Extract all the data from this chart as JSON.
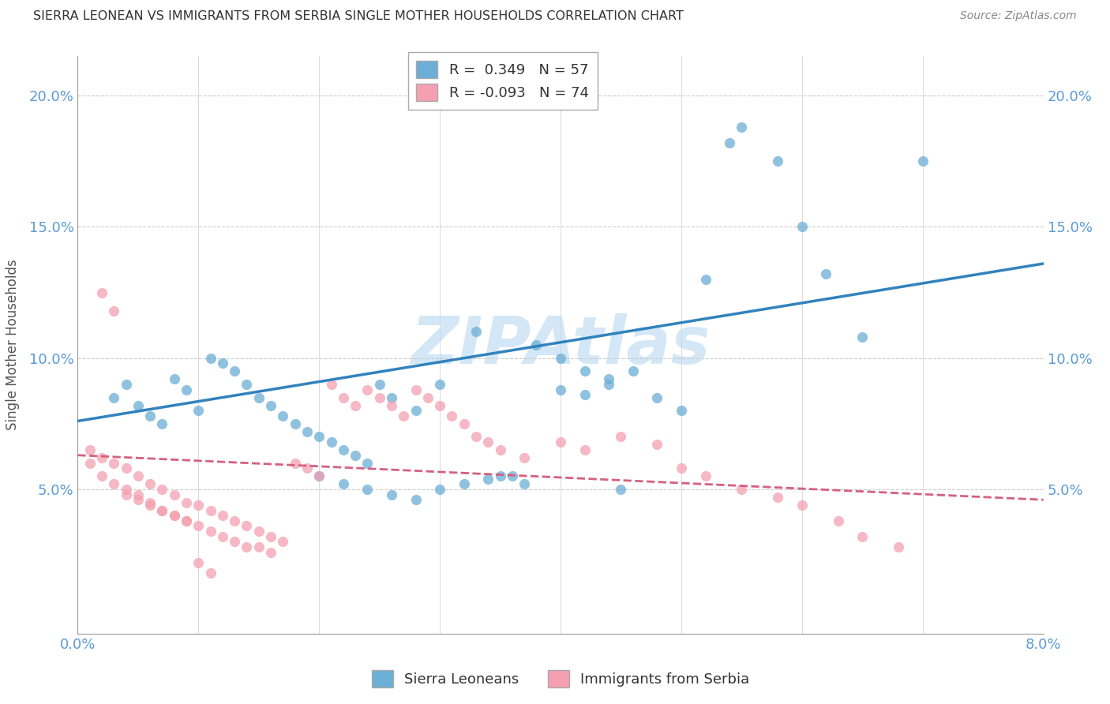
{
  "title": "SIERRA LEONEAN VS IMMIGRANTS FROM SERBIA SINGLE MOTHER HOUSEHOLDS CORRELATION CHART",
  "source": "Source: ZipAtlas.com",
  "ylabel": "Single Mother Households",
  "xlim": [
    0.0,
    0.08
  ],
  "ylim": [
    -0.005,
    0.215
  ],
  "yticks": [
    0.05,
    0.1,
    0.15,
    0.2
  ],
  "xticks": [
    0.0,
    0.01,
    0.02,
    0.03,
    0.04,
    0.05,
    0.06,
    0.07,
    0.08
  ],
  "blue_color": "#6baed6",
  "pink_color": "#f4a0b0",
  "trendline_blue_color": "#3182bd",
  "trendline_pink_color": "#d46080",
  "grid_color": "#cccccc",
  "axis_label_color": "#5b9bd5",
  "watermark": "ZIPAtlas",
  "watermark_color": "#b8d8f0",
  "legend_label_blue": "R =  0.349   N = 57",
  "legend_label_pink": "R = -0.093   N = 74",
  "bottom_legend_blue": "Sierra Leoneans",
  "bottom_legend_pink": "Immigrants from Serbia",
  "blue_scatter_x": [
    0.003,
    0.004,
    0.005,
    0.006,
    0.007,
    0.008,
    0.009,
    0.01,
    0.011,
    0.012,
    0.013,
    0.014,
    0.015,
    0.016,
    0.017,
    0.018,
    0.019,
    0.02,
    0.021,
    0.022,
    0.023,
    0.024,
    0.025,
    0.026,
    0.028,
    0.03,
    0.033,
    0.035,
    0.037,
    0.04,
    0.042,
    0.044,
    0.046,
    0.048,
    0.05,
    0.052,
    0.054,
    0.055,
    0.058,
    0.06,
    0.062,
    0.065,
    0.07,
    0.038,
    0.04,
    0.042,
    0.044,
    0.045,
    0.02,
    0.022,
    0.024,
    0.026,
    0.028,
    0.03,
    0.032,
    0.034,
    0.036
  ],
  "blue_scatter_y": [
    0.085,
    0.09,
    0.082,
    0.078,
    0.075,
    0.092,
    0.088,
    0.08,
    0.1,
    0.098,
    0.095,
    0.09,
    0.085,
    0.082,
    0.078,
    0.075,
    0.072,
    0.07,
    0.068,
    0.065,
    0.063,
    0.06,
    0.09,
    0.085,
    0.08,
    0.09,
    0.11,
    0.055,
    0.052,
    0.088,
    0.086,
    0.092,
    0.095,
    0.085,
    0.08,
    0.13,
    0.182,
    0.188,
    0.175,
    0.15,
    0.132,
    0.108,
    0.175,
    0.105,
    0.1,
    0.095,
    0.09,
    0.05,
    0.055,
    0.052,
    0.05,
    0.048,
    0.046,
    0.05,
    0.052,
    0.054,
    0.055
  ],
  "pink_scatter_x": [
    0.001,
    0.001,
    0.002,
    0.002,
    0.003,
    0.003,
    0.004,
    0.004,
    0.005,
    0.005,
    0.006,
    0.006,
    0.007,
    0.007,
    0.008,
    0.008,
    0.009,
    0.009,
    0.01,
    0.01,
    0.011,
    0.011,
    0.012,
    0.012,
    0.013,
    0.013,
    0.014,
    0.014,
    0.015,
    0.015,
    0.016,
    0.016,
    0.017,
    0.018,
    0.019,
    0.02,
    0.021,
    0.022,
    0.023,
    0.024,
    0.025,
    0.026,
    0.027,
    0.028,
    0.029,
    0.03,
    0.031,
    0.032,
    0.033,
    0.034,
    0.035,
    0.037,
    0.04,
    0.042,
    0.045,
    0.048,
    0.05,
    0.052,
    0.055,
    0.058,
    0.06,
    0.063,
    0.065,
    0.068,
    0.002,
    0.003,
    0.004,
    0.005,
    0.006,
    0.007,
    0.008,
    0.009,
    0.01,
    0.011
  ],
  "pink_scatter_y": [
    0.065,
    0.06,
    0.062,
    0.055,
    0.06,
    0.052,
    0.058,
    0.05,
    0.055,
    0.048,
    0.052,
    0.045,
    0.05,
    0.042,
    0.048,
    0.04,
    0.045,
    0.038,
    0.044,
    0.036,
    0.042,
    0.034,
    0.04,
    0.032,
    0.038,
    0.03,
    0.036,
    0.028,
    0.034,
    0.028,
    0.032,
    0.026,
    0.03,
    0.06,
    0.058,
    0.055,
    0.09,
    0.085,
    0.082,
    0.088,
    0.085,
    0.082,
    0.078,
    0.088,
    0.085,
    0.082,
    0.078,
    0.075,
    0.07,
    0.068,
    0.065,
    0.062,
    0.068,
    0.065,
    0.07,
    0.067,
    0.058,
    0.055,
    0.05,
    0.047,
    0.044,
    0.038,
    0.032,
    0.028,
    0.125,
    0.118,
    0.048,
    0.046,
    0.044,
    0.042,
    0.04,
    0.038,
    0.022,
    0.018
  ],
  "blue_trend_x": [
    0.0,
    0.08
  ],
  "blue_trend_y": [
    0.076,
    0.136
  ],
  "pink_trend_x": [
    0.0,
    0.08
  ],
  "pink_trend_y": [
    0.063,
    0.046
  ]
}
